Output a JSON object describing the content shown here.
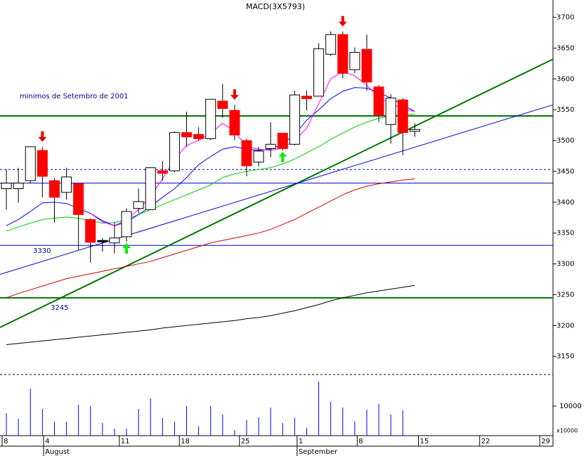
{
  "chart_data": {
    "type": "candlestick",
    "title": "MACD(3X5793)",
    "annotation": "minimos de Setembro de 2001",
    "xlim": [
      -0.53,
      45.5
    ],
    "xticks": [
      {
        "value": -0.35,
        "label": "8"
      },
      {
        "value": 3.1,
        "label": "4"
      },
      {
        "value": 9.4,
        "label": "11"
      },
      {
        "value": 14.4,
        "label": "18"
      },
      {
        "value": 19.4,
        "label": "25"
      },
      {
        "value": 24.2,
        "label": "1"
      },
      {
        "value": 29.2,
        "label": "8"
      },
      {
        "value": 34.3,
        "label": "15"
      },
      {
        "value": 39.4,
        "label": "22"
      },
      {
        "value": 44.4,
        "label": "29"
      }
    ],
    "months": [
      {
        "value": 3.1,
        "label": "August"
      },
      {
        "value": 24.2,
        "label": "September"
      }
    ],
    "ylim": [
      3124,
      3728
    ],
    "yticks": [
      3150,
      3200,
      3250,
      3300,
      3350,
      3400,
      3450,
      3500,
      3550,
      3600,
      3650,
      3700
    ],
    "up_color": "#ffffff",
    "down_color": "#ff0000",
    "open": [
      3422,
      3422,
      3435,
      3484,
      3435,
      3416,
      3430,
      3372,
      3338,
      3334,
      3344,
      3390,
      3388,
      3451,
      3451,
      3513,
      3510,
      3503,
      3564,
      3549,
      3500,
      3465,
      3487,
      3512,
      3494,
      3572,
      3572,
      3640,
      3672,
      3615,
      3648,
      3587,
      3526,
      3566,
      3515
    ],
    "high": [
      3453,
      3456,
      3490,
      3490,
      3439,
      3456,
      3430,
      3374,
      3342,
      3367,
      3390,
      3422,
      3456,
      3467,
      3515,
      3547,
      3522,
      3567,
      3592,
      3558,
      3503,
      3490,
      3530,
      3512,
      3581,
      3581,
      3658,
      3677,
      3677,
      3651,
      3672,
      3590,
      3575,
      3569,
      3528
    ],
    "low": [
      3388,
      3399,
      3431,
      3408,
      3367,
      3404,
      3323,
      3302,
      3320,
      3317,
      3336,
      3382,
      3388,
      3435,
      3449,
      3490,
      3500,
      3501,
      3537,
      3501,
      3442,
      3458,
      3473,
      3484,
      3492,
      3549,
      3572,
      3637,
      3601,
      3609,
      3581,
      3530,
      3495,
      3476,
      3506
    ],
    "close": [
      3431,
      3431,
      3490,
      3442,
      3408,
      3441,
      3380,
      3335,
      3338,
      3342,
      3385,
      3401,
      3456,
      3447,
      3513,
      3506,
      3503,
      3567,
      3552,
      3509,
      3459,
      3483,
      3494,
      3487,
      3574,
      3568,
      3649,
      3672,
      3609,
      3643,
      3595,
      3541,
      3569,
      3513,
      3518
    ],
    "series": [
      {
        "color": "#000000",
        "values": [
          3169,
          3171,
          3173,
          3175,
          3177,
          3179,
          3181,
          3183,
          3185,
          3187,
          3189,
          3191,
          3193,
          3196,
          3198,
          3200,
          3202,
          3204,
          3206,
          3208,
          3211,
          3213,
          3216,
          3220,
          3224,
          3229,
          3234,
          3240,
          3245,
          3249,
          3253,
          3256,
          3259,
          3262,
          3265
        ]
      },
      {
        "color": "#cc0000",
        "values": [
          3245,
          3252,
          3258,
          3264,
          3270,
          3276,
          3280,
          3284,
          3288,
          3292,
          3296,
          3300,
          3304,
          3310,
          3316,
          3322,
          3328,
          3334,
          3338,
          3342,
          3346,
          3350,
          3356,
          3364,
          3372,
          3382,
          3392,
          3402,
          3412,
          3420,
          3426,
          3430,
          3433,
          3436,
          3438
        ]
      },
      {
        "color": "#00cc00",
        "values": [
          3353,
          3360,
          3366,
          3372,
          3374,
          3376,
          3374,
          3370,
          3366,
          3367,
          3372,
          3380,
          3388,
          3396,
          3404,
          3412,
          3420,
          3428,
          3440,
          3446,
          3450,
          3453,
          3456,
          3462,
          3470,
          3480,
          3490,
          3502,
          3512,
          3522,
          3530,
          3536,
          3540,
          3542,
          3543
        ]
      },
      {
        "color": "#0000ff",
        "values": [
          3362,
          3372,
          3385,
          3399,
          3400,
          3398,
          3390,
          3382,
          3370,
          3362,
          3368,
          3380,
          3393,
          3408,
          3422,
          3440,
          3461,
          3474,
          3486,
          3490,
          3486,
          3484,
          3486,
          3494,
          3510,
          3533,
          3550,
          3568,
          3580,
          3586,
          3585,
          3578,
          3569,
          3558,
          3547
        ]
      },
      {
        "color": "#ff00ff",
        "values": [
          null,
          null,
          null,
          null,
          null,
          null,
          null,
          3382,
          3368,
          3362,
          3372,
          3388,
          3410,
          3438,
          3470,
          3492,
          3500,
          3512,
          3528,
          3515,
          3490,
          3486,
          3484,
          3488,
          3500,
          3520,
          3560,
          3600,
          3612,
          3605,
          3590,
          3570,
          3560,
          3552,
          3547
        ]
      }
    ],
    "hlines": [
      {
        "value": 3540,
        "color": "#007700"
      },
      {
        "value": 3245,
        "color": "#007700"
      },
      {
        "value": 3330,
        "color": "#0000cc"
      },
      {
        "value": 3431,
        "color": "#0000cc"
      },
      {
        "value": 3453,
        "color": "#0000aa",
        "dashed": true
      }
    ],
    "trendlines": [
      {
        "x": [
          -0.53,
          45.5
        ],
        "y": [
          3197,
          3632
        ],
        "color": "#007700"
      },
      {
        "x": [
          -0.53,
          45.5
        ],
        "y": [
          3283,
          3558
        ],
        "color": "#0000cc"
      }
    ],
    "sell_signals": [
      3,
      19,
      28
    ],
    "buy_signals": [
      10,
      23
    ],
    "volume": {
      "multiplier_label": "x10000",
      "ylim": [
        0,
        20700
      ],
      "yticks": [
        10000
      ],
      "color": "#0000ff",
      "values": [
        7619,
        5714,
        15952,
        9048,
        4762,
        4762,
        10476,
        10000,
        4286,
        2381,
        2381,
        9048,
        12619,
        5952,
        4762,
        10000,
        3095,
        10000,
        7143,
        1905,
        5238,
        6190,
        9524,
        4286,
        5952,
        2619,
        18333,
        11429,
        9524,
        4762,
        8810,
        10714,
        7143,
        8571,
        null
      ]
    }
  }
}
